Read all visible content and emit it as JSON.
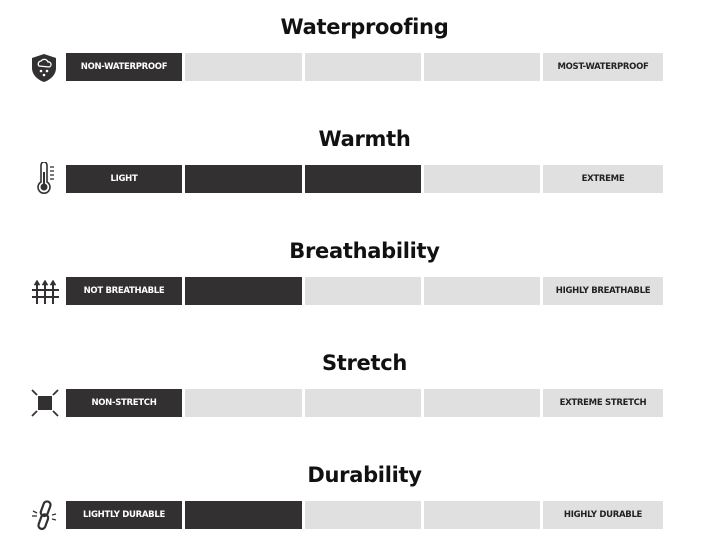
{
  "colors": {
    "filled": "#333031",
    "empty": "#e0e0e0"
  },
  "scales": [
    {
      "title": "Waterproofing",
      "icon": "shield-rain-icon",
      "low": "NON-WATERPROOF",
      "high": "MOST-WATERPROOF",
      "level": 1
    },
    {
      "title": "Warmth",
      "icon": "thermometer-icon",
      "low": "LIGHT",
      "high": "EXTREME",
      "level": 3
    },
    {
      "title": "Breathability",
      "icon": "airflow-arrows-icon",
      "low": "NOT BREATHABLE",
      "high": "HIGHLY BREATHABLE",
      "level": 2
    },
    {
      "title": "Stretch",
      "icon": "stretch-square-icon",
      "low": "NON-STRETCH",
      "high": "EXTREME STRETCH",
      "level": 1
    },
    {
      "title": "Durability",
      "icon": "chain-link-icon",
      "low": "LIGHTLY DURABLE",
      "high": "HIGHLY DURABLE",
      "level": 2
    }
  ]
}
